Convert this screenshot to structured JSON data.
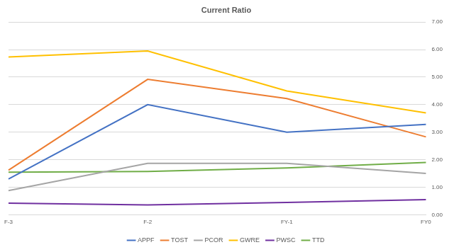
{
  "chart_data": {
    "type": "line",
    "title": "Current Ratio",
    "categories": [
      "F-3",
      "F-2",
      "FY-1",
      "FY0"
    ],
    "series": [
      {
        "name": "APPF",
        "color": "#4472c4",
        "values": [
          1.3,
          4.0,
          3.0,
          3.28
        ]
      },
      {
        "name": "TOST",
        "color": "#ed7d31",
        "values": [
          1.62,
          4.92,
          4.22,
          2.83
        ]
      },
      {
        "name": "PCOR",
        "color": "#a5a5a5",
        "values": [
          0.88,
          1.87,
          1.87,
          1.5
        ]
      },
      {
        "name": "GWRE",
        "color": "#ffc000",
        "values": [
          5.73,
          5.95,
          4.5,
          3.7
        ]
      },
      {
        "name": "PWSC",
        "color": "#7030a0",
        "values": [
          0.42,
          0.36,
          0.45,
          0.55
        ]
      },
      {
        "name": "TTD",
        "color": "#70ad47",
        "values": [
          1.55,
          1.57,
          1.7,
          1.9
        ]
      }
    ],
    "ylim": [
      0,
      7
    ],
    "yticks": [
      {
        "value": 0,
        "label": "0.00"
      },
      {
        "value": 1,
        "label": "1.00"
      },
      {
        "value": 2,
        "label": "2.00"
      },
      {
        "value": 3,
        "label": "3.00"
      },
      {
        "value": 4,
        "label": "4.00"
      },
      {
        "value": 5,
        "label": "5.00"
      },
      {
        "value": 6,
        "label": "6.00"
      },
      {
        "value": 7,
        "label": "7.00"
      }
    ],
    "grid": true,
    "legend": "bottom"
  }
}
